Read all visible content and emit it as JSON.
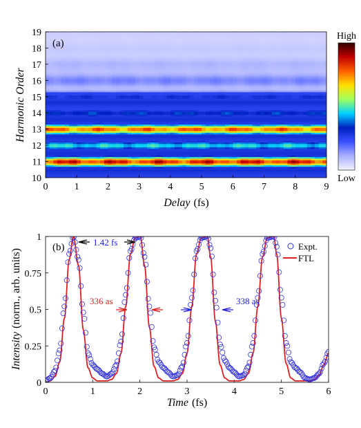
{
  "chart_data": [
    {
      "type": "heatmap",
      "panel_label": "(a)",
      "xlabel_var": "Delay",
      "xlabel_unit": "(fs)",
      "ylabel": "Harmonic Order",
      "xlim": [
        0,
        9
      ],
      "ylim": [
        10,
        19
      ],
      "x_ticks": [
        "0",
        "1",
        "2",
        "3",
        "4",
        "5",
        "6",
        "7",
        "8",
        "9"
      ],
      "y_ticks": [
        "10",
        "11",
        "12",
        "13",
        "14",
        "15",
        "16",
        "17",
        "18",
        "19"
      ],
      "colorbar": {
        "high_label": "High",
        "low_label": "Low",
        "colors": [
          "#f4f4ff",
          "#aab0ff",
          "#3a50ff",
          "#0020c0",
          "#00d0ff",
          "#a0ff60",
          "#ffe000",
          "#ff6000",
          "#c00000",
          "#300000"
        ]
      },
      "bands": [
        {
          "harmonic": 11,
          "intensity": 0.8
        },
        {
          "harmonic": 12,
          "intensity": 0.42
        },
        {
          "harmonic": 13,
          "intensity": 0.72
        },
        {
          "harmonic": 14,
          "intensity": 0.3
        },
        {
          "harmonic": 15,
          "intensity": 0.25
        },
        {
          "harmonic": 16,
          "intensity": 0.12
        },
        {
          "harmonic": 17,
          "intensity": 0.06
        },
        {
          "harmonic": 18,
          "intensity": 0.03
        },
        {
          "harmonic": 19,
          "intensity": 0.02
        }
      ]
    },
    {
      "type": "line",
      "panel_label": "(b)",
      "xlabel_var": "Time",
      "xlabel_unit": "(fs)",
      "ylabel_var": "Intensity",
      "ylabel_unit": "(norm., arb. units)",
      "xlim": [
        0,
        6
      ],
      "ylim": [
        0,
        1
      ],
      "x_ticks": [
        "0",
        "1",
        "2",
        "3",
        "4",
        "5",
        "6"
      ],
      "y_ticks": [
        "0",
        "0.25",
        "0.5",
        "0.75",
        "1"
      ],
      "legend": {
        "position": "top-right",
        "entries": [
          "Expt.",
          "FTL"
        ]
      },
      "series": [
        {
          "name": "Expt.",
          "marker": "circle",
          "color": "#3030e0",
          "x": [
            0,
            0.1,
            0.2,
            0.3,
            0.4,
            0.5,
            0.59,
            0.7,
            0.8,
            0.9,
            1.0,
            1.1,
            1.2,
            1.3,
            1.4,
            1.5,
            1.6,
            1.7,
            1.8,
            1.9,
            2.01,
            2.1,
            2.2,
            2.3,
            2.4,
            2.5,
            2.6,
            2.7,
            2.8,
            2.9,
            3.0,
            3.1,
            3.2,
            3.3,
            3.43,
            3.5,
            3.6,
            3.7,
            3.8,
            3.9,
            4.0,
            4.1,
            4.2,
            4.3,
            4.4,
            4.5,
            4.6,
            4.7,
            4.84,
            4.9,
            5.0,
            5.1,
            5.2,
            5.3,
            5.4,
            5.5,
            5.6,
            5.7,
            5.8,
            5.9,
            6.0
          ],
          "y": [
            0.01,
            0.03,
            0.08,
            0.22,
            0.52,
            0.88,
            1.0,
            0.84,
            0.48,
            0.2,
            0.12,
            0.09,
            0.06,
            0.04,
            0.06,
            0.12,
            0.28,
            0.6,
            0.9,
            0.99,
            1.0,
            0.86,
            0.52,
            0.24,
            0.14,
            0.1,
            0.07,
            0.04,
            0.05,
            0.11,
            0.27,
            0.58,
            0.9,
            0.99,
            1.0,
            0.92,
            0.56,
            0.26,
            0.15,
            0.1,
            0.07,
            0.04,
            0.05,
            0.11,
            0.27,
            0.58,
            0.88,
            0.99,
            1.0,
            0.93,
            0.58,
            0.27,
            0.14,
            0.1,
            0.07,
            0.03,
            0.02,
            0.03,
            0.06,
            0.13,
            0.21
          ]
        },
        {
          "name": "FTL",
          "marker": "line",
          "color": "#e02020",
          "x": [
            0,
            0.1,
            0.2,
            0.3,
            0.4,
            0.5,
            0.59,
            0.7,
            0.8,
            0.9,
            1.0,
            1.1,
            1.2,
            1.3,
            1.4,
            1.5,
            1.6,
            1.7,
            1.8,
            1.9,
            2.01,
            2.1,
            2.2,
            2.3,
            2.4,
            2.5,
            2.6,
            2.7,
            2.8,
            2.9,
            3.0,
            3.1,
            3.2,
            3.3,
            3.43,
            3.5,
            3.6,
            3.7,
            3.8,
            3.9,
            4.0,
            4.1,
            4.2,
            4.3,
            4.4,
            4.5,
            4.6,
            4.7,
            4.84,
            4.9,
            5.0,
            5.1,
            5.2,
            5.3,
            5.4,
            5.5,
            5.6,
            5.7,
            5.8,
            5.9,
            6.0
          ],
          "y": [
            0.0,
            0.01,
            0.04,
            0.14,
            0.44,
            0.84,
            1.0,
            0.8,
            0.36,
            0.1,
            0.03,
            0.01,
            0.01,
            0.01,
            0.02,
            0.06,
            0.2,
            0.52,
            0.88,
            0.99,
            1.0,
            0.8,
            0.38,
            0.11,
            0.03,
            0.01,
            0.01,
            0.01,
            0.02,
            0.06,
            0.2,
            0.52,
            0.88,
            0.99,
            1.0,
            0.86,
            0.42,
            0.12,
            0.03,
            0.01,
            0.01,
            0.01,
            0.02,
            0.06,
            0.2,
            0.52,
            0.86,
            0.99,
            1.0,
            0.88,
            0.44,
            0.13,
            0.03,
            0.01,
            0.01,
            0.01,
            0.01,
            0.02,
            0.05,
            0.12,
            0.2
          ]
        }
      ],
      "annotations": [
        {
          "text": "1.42 fs",
          "color": "#2020e0"
        },
        {
          "text": "336 as",
          "color": "#e02020"
        },
        {
          "text": "338 as",
          "color": "#2020e0"
        }
      ]
    }
  ]
}
